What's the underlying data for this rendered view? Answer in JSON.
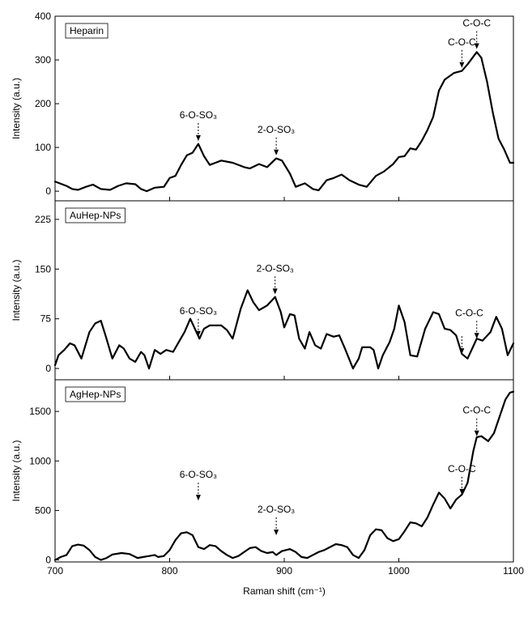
{
  "chart_data": [
    {
      "type": "line",
      "ylabel": "Intensity (a.u.)",
      "xlim": [
        700,
        1100
      ],
      "xticks": [
        700,
        800,
        900,
        1000,
        1100
      ],
      "ylim": [
        -22,
        400
      ],
      "yticks": [
        0,
        100,
        200,
        300,
        400
      ],
      "x": [
        700,
        710,
        715,
        720,
        727,
        733,
        740,
        748,
        755,
        762,
        770,
        775,
        780,
        787,
        795,
        800,
        805,
        810,
        815,
        820,
        825,
        830,
        835,
        840,
        845,
        855,
        865,
        870,
        878,
        885,
        893,
        898,
        905,
        910,
        918,
        925,
        930,
        937,
        943,
        950,
        957,
        965,
        972,
        980,
        987,
        995,
        1000,
        1005,
        1010,
        1015,
        1020,
        1025,
        1030,
        1035,
        1040,
        1048,
        1055,
        1060,
        1068,
        1072,
        1077,
        1082,
        1087,
        1092,
        1097,
        1100
      ],
      "series": [
        {
          "name": "Heparin",
          "color": "#000000",
          "values": [
            22,
            12,
            5,
            3,
            10,
            15,
            5,
            3,
            12,
            18,
            16,
            5,
            0,
            8,
            10,
            30,
            35,
            60,
            82,
            88,
            108,
            80,
            60,
            65,
            70,
            65,
            55,
            52,
            62,
            55,
            75,
            70,
            40,
            10,
            18,
            5,
            2,
            25,
            30,
            38,
            25,
            15,
            10,
            35,
            45,
            62,
            78,
            80,
            98,
            95,
            115,
            140,
            170,
            230,
            255,
            270,
            275,
            290,
            318,
            305,
            250,
            180,
            120,
            95,
            65,
            65
          ]
        }
      ],
      "annotations": [
        {
          "text": "6-O-SO₃",
          "x": 825,
          "y": 115
        },
        {
          "text": "2-O-SO₃",
          "x": 893,
          "y": 82
        },
        {
          "text": "C-O-C",
          "x": 1055,
          "y": 282
        },
        {
          "text": "C-O-C",
          "x": 1068,
          "y": 325
        }
      ]
    },
    {
      "type": "line",
      "ylabel": "Intensity (a.u.)",
      "xlim": [
        700,
        1100
      ],
      "xticks": [
        700,
        800,
        900,
        1000,
        1100
      ],
      "ylim": [
        -17,
        253
      ],
      "yticks": [
        0,
        75,
        150,
        225
      ],
      "x": [
        700,
        703,
        708,
        713,
        717,
        723,
        730,
        735,
        740,
        744,
        750,
        756,
        760,
        765,
        770,
        775,
        778,
        782,
        787,
        792,
        797,
        803,
        808,
        813,
        818,
        822,
        826,
        830,
        835,
        845,
        850,
        855,
        862,
        868,
        873,
        878,
        885,
        892,
        897,
        900,
        905,
        909,
        913,
        918,
        922,
        927,
        932,
        937,
        943,
        948,
        953,
        960,
        965,
        968,
        975,
        978,
        982,
        986,
        992,
        996,
        1000,
        1005,
        1010,
        1016,
        1023,
        1030,
        1035,
        1040,
        1045,
        1050,
        1055,
        1060,
        1068,
        1073,
        1080,
        1085,
        1090,
        1095,
        1100
      ],
      "series": [
        {
          "name": "AuHep-NPs",
          "color": "#000000",
          "values": [
            5,
            20,
            28,
            38,
            35,
            15,
            55,
            68,
            72,
            50,
            15,
            35,
            30,
            15,
            10,
            25,
            20,
            0,
            28,
            22,
            28,
            25,
            40,
            55,
            75,
            60,
            45,
            60,
            65,
            65,
            58,
            45,
            90,
            118,
            100,
            88,
            95,
            108,
            85,
            62,
            82,
            80,
            45,
            30,
            55,
            35,
            30,
            52,
            48,
            50,
            30,
            0,
            15,
            32,
            32,
            28,
            0,
            20,
            40,
            60,
            95,
            70,
            20,
            18,
            60,
            85,
            82,
            60,
            58,
            50,
            22,
            15,
            45,
            42,
            55,
            78,
            60,
            20,
            38
          ]
        }
      ],
      "annotations": [
        {
          "text": "6-O-SO₃",
          "x": 825,
          "y": 48
        },
        {
          "text": "2-O-SO₃",
          "x": 892,
          "y": 112
        },
        {
          "text": "C-O-C",
          "x": [
            1055,
            1068
          ],
          "y": [
            22,
            45
          ]
        }
      ]
    },
    {
      "type": "line",
      "ylabel": "Intensity (a.u.)",
      "xlabel": "Raman shift (cm⁻¹)",
      "xlim": [
        700,
        1100
      ],
      "xticks": [
        700,
        800,
        900,
        1000,
        1100
      ],
      "ylim": [
        -20,
        1820
      ],
      "yticks": [
        0,
        500,
        1000,
        1500
      ],
      "x": [
        700,
        705,
        710,
        715,
        720,
        725,
        730,
        735,
        740,
        745,
        750,
        758,
        765,
        772,
        777,
        782,
        787,
        790,
        795,
        800,
        805,
        810,
        815,
        820,
        825,
        830,
        835,
        840,
        845,
        850,
        855,
        860,
        865,
        870,
        875,
        880,
        885,
        890,
        893,
        898,
        905,
        910,
        915,
        920,
        925,
        930,
        935,
        940,
        945,
        950,
        955,
        960,
        965,
        970,
        975,
        980,
        985,
        990,
        995,
        1000,
        1005,
        1010,
        1015,
        1020,
        1025,
        1030,
        1035,
        1040,
        1045,
        1050,
        1055,
        1060,
        1065,
        1068,
        1072,
        1078,
        1083,
        1088,
        1093,
        1097,
        1100
      ],
      "series": [
        {
          "name": "AgHep-NPs",
          "color": "#000000",
          "values": [
            0,
            30,
            50,
            140,
            155,
            145,
            100,
            30,
            0,
            20,
            55,
            70,
            60,
            20,
            30,
            40,
            50,
            30,
            40,
            100,
            200,
            270,
            280,
            250,
            130,
            110,
            150,
            140,
            90,
            50,
            20,
            40,
            80,
            120,
            130,
            90,
            70,
            80,
            50,
            90,
            110,
            80,
            30,
            20,
            50,
            80,
            100,
            130,
            160,
            150,
            130,
            50,
            20,
            100,
            250,
            310,
            300,
            220,
            190,
            210,
            290,
            380,
            370,
            340,
            430,
            560,
            680,
            620,
            520,
            610,
            660,
            780,
            1100,
            1240,
            1250,
            1200,
            1280,
            1450,
            1620,
            1690,
            1700
          ]
        }
      ],
      "annotations": [
        {
          "text": "6-O-SO₃",
          "x": 825,
          "y": 600
        },
        {
          "text": "2-O-SO₃",
          "x": 893,
          "y": 250
        },
        {
          "text": "C-O-C",
          "x": 1055,
          "y": 660
        },
        {
          "text": "C-O-C",
          "x": 1068,
          "y": 1250
        }
      ]
    }
  ]
}
